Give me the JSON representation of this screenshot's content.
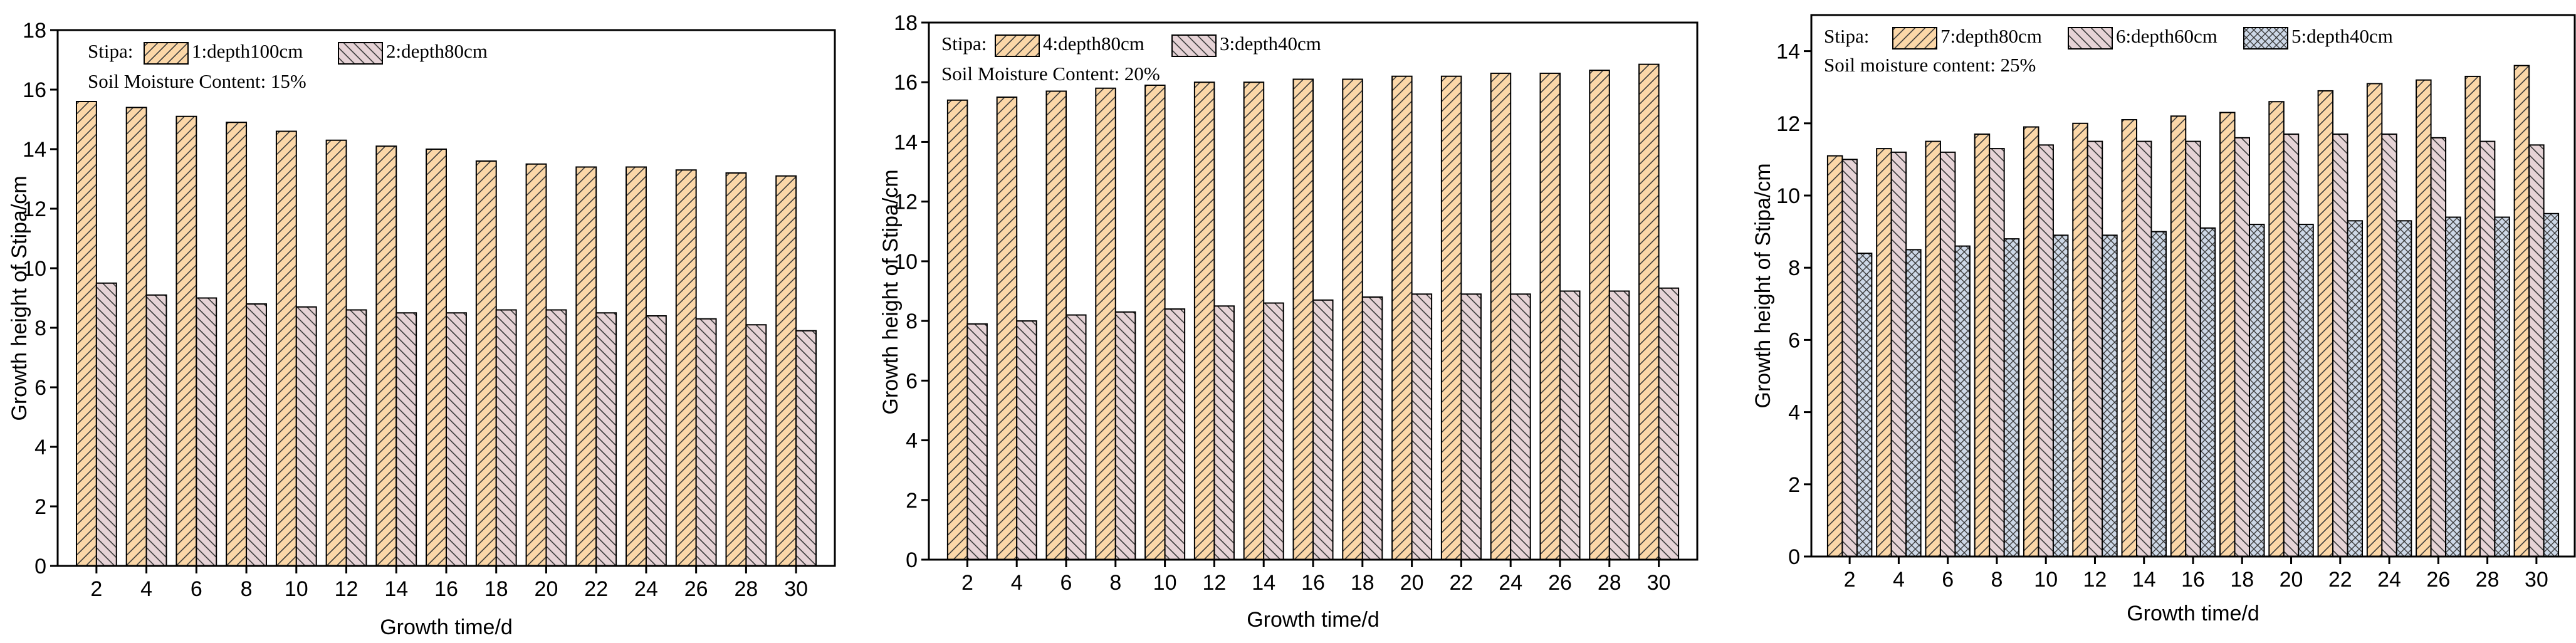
{
  "colors": {
    "bar_orange": "#fbd7a8",
    "bar_pink": "#e6d3d6",
    "bar_blue": "#cdd8e7",
    "hatch": "#3a3a3a"
  },
  "chart_data": [
    {
      "type": "bar",
      "legend_prefix": "Stipa:",
      "annotation": "Soil Moisture Content:  15%",
      "xlabel": "Growth time/d",
      "ylabel": "Growth height of Stipa/cm",
      "ylim": [
        0,
        18
      ],
      "yticks": [
        0,
        2,
        4,
        6,
        8,
        10,
        12,
        14,
        16,
        18
      ],
      "categories": [
        "2",
        "4",
        "6",
        "8",
        "10",
        "12",
        "14",
        "16",
        "18",
        "20",
        "22",
        "24",
        "26",
        "28",
        "30"
      ],
      "series": [
        {
          "name": "1:depth100cm",
          "color": "#fbd7a8",
          "pattern": "diag",
          "values": [
            15.6,
            15.4,
            15.1,
            14.9,
            14.6,
            14.3,
            14.1,
            14.0,
            13.6,
            13.5,
            13.4,
            13.4,
            13.3,
            13.2,
            13.1
          ]
        },
        {
          "name": "2:depth80cm",
          "color": "#e6d3d6",
          "pattern": "diag",
          "values": [
            9.5,
            9.1,
            9.0,
            8.8,
            8.7,
            8.6,
            8.5,
            8.5,
            8.6,
            8.6,
            8.5,
            8.4,
            8.3,
            8.1,
            7.9
          ]
        }
      ]
    },
    {
      "type": "bar",
      "legend_prefix": "Stipa:",
      "annotation": "Soil Moisture Content:  20%",
      "xlabel": "Growth time/d",
      "ylabel": "Growth height of Stipa/cm",
      "ylim": [
        0,
        18
      ],
      "yticks": [
        0,
        2,
        4,
        6,
        8,
        10,
        12,
        14,
        16,
        18
      ],
      "categories": [
        "2",
        "4",
        "6",
        "8",
        "10",
        "12",
        "14",
        "16",
        "18",
        "20",
        "22",
        "24",
        "26",
        "28",
        "30"
      ],
      "series": [
        {
          "name": "4:depth80cm",
          "color": "#fbd7a8",
          "pattern": "diag",
          "values": [
            15.4,
            15.5,
            15.7,
            15.8,
            15.9,
            16.0,
            16.0,
            16.1,
            16.1,
            16.2,
            16.2,
            16.3,
            16.3,
            16.4,
            16.6
          ]
        },
        {
          "name": "3:depth40cm",
          "color": "#e6d3d6",
          "pattern": "diag",
          "values": [
            7.9,
            8.0,
            8.2,
            8.3,
            8.4,
            8.5,
            8.6,
            8.7,
            8.8,
            8.9,
            8.9,
            8.9,
            9.0,
            9.0,
            9.1
          ]
        }
      ]
    },
    {
      "type": "bar",
      "legend_prefix": "Stipa:",
      "annotation": "Soil moisture content:  25%",
      "xlabel": "Growth time/d",
      "ylabel": "Growth height of Stipa/cm",
      "ylim": [
        0,
        15
      ],
      "yticks": [
        0,
        2,
        4,
        6,
        8,
        10,
        12,
        14
      ],
      "categories": [
        "2",
        "4",
        "6",
        "8",
        "10",
        "12",
        "14",
        "16",
        "18",
        "20",
        "22",
        "24",
        "26",
        "28",
        "30"
      ],
      "series": [
        {
          "name": "7:depth80cm",
          "color": "#fbd7a8",
          "pattern": "diag",
          "values": [
            11.1,
            11.3,
            11.5,
            11.7,
            11.9,
            12.0,
            12.1,
            12.2,
            12.3,
            12.6,
            12.9,
            13.1,
            13.2,
            13.3,
            13.6
          ]
        },
        {
          "name": "6:depth60cm",
          "color": "#e6d3d6",
          "pattern": "diag",
          "values": [
            11.0,
            11.2,
            11.2,
            11.3,
            11.4,
            11.5,
            11.5,
            11.5,
            11.6,
            11.7,
            11.7,
            11.7,
            11.6,
            11.5,
            11.4
          ]
        },
        {
          "name": "5:depth40cm",
          "color": "#cdd8e7",
          "pattern": "cross",
          "values": [
            8.4,
            8.5,
            8.6,
            8.8,
            8.9,
            8.9,
            9.0,
            9.1,
            9.2,
            9.2,
            9.3,
            9.3,
            9.4,
            9.4,
            9.5
          ]
        }
      ]
    }
  ]
}
